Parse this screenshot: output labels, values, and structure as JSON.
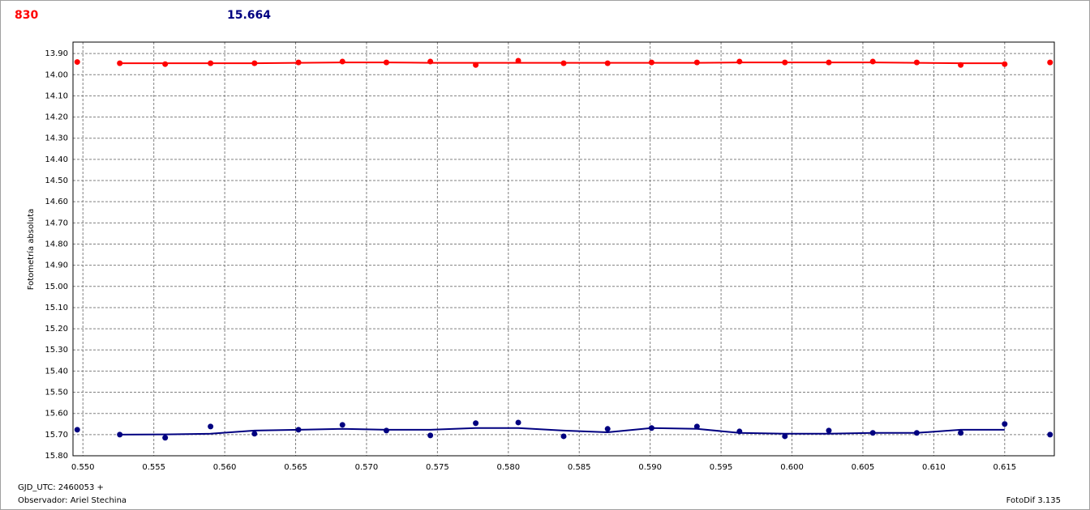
{
  "chart_data": {
    "type": "scatter",
    "header_left": "830",
    "header_right": "15.664",
    "y_label": "Fotometría absoluta",
    "footer_x": "GJD_UTC: 2460053 +",
    "footer_observer": "Observador: Ariel Stechina",
    "footer_software": "FotoDif 3.135",
    "x": [
      0.5496,
      0.5526,
      0.5558,
      0.559,
      0.5621,
      0.5652,
      0.5683,
      0.5714,
      0.5745,
      0.5777,
      0.5807,
      0.5839,
      0.587,
      0.5901,
      0.5933,
      0.5963,
      0.5995,
      0.6026,
      0.6057,
      0.6088,
      0.6119,
      0.615,
      0.6182
    ],
    "series": [
      {
        "color": "#ff0000",
        "values": [
          13.94,
          13.946,
          13.95,
          13.946,
          13.946,
          13.942,
          13.938,
          13.942,
          13.938,
          13.954,
          13.934,
          13.946,
          13.946,
          13.942,
          13.942,
          13.938,
          13.942,
          13.942,
          13.938,
          13.942,
          13.954,
          13.95,
          13.942
        ],
        "trend": [
          null,
          13.946,
          13.946,
          13.946,
          13.946,
          13.944,
          13.942,
          13.942,
          13.944,
          13.944,
          13.944,
          13.944,
          13.944,
          13.944,
          13.944,
          13.942,
          13.942,
          13.942,
          13.942,
          13.944,
          13.946,
          13.946,
          null
        ]
      },
      {
        "color": "#000080",
        "values": [
          15.677,
          15.7,
          15.715,
          15.662,
          15.696,
          15.677,
          15.654,
          15.681,
          15.704,
          15.646,
          15.643,
          15.708,
          15.673,
          15.669,
          15.662,
          15.685,
          15.708,
          15.681,
          15.692,
          15.692,
          15.692,
          15.65,
          15.7
        ],
        "trend": [
          null,
          15.7,
          15.699,
          15.696,
          15.681,
          15.677,
          15.673,
          15.677,
          15.677,
          15.669,
          15.669,
          15.681,
          15.689,
          15.669,
          15.673,
          15.692,
          15.696,
          15.696,
          15.692,
          15.692,
          15.677,
          15.677,
          null
        ]
      }
    ],
    "xlim": [
      0.5493,
      0.6185
    ],
    "xticks": [
      {
        "value": 0.55,
        "label": "0.550"
      },
      {
        "value": 0.555,
        "label": "0.555"
      },
      {
        "value": 0.56,
        "label": "0.560"
      },
      {
        "value": 0.565,
        "label": "0.565"
      },
      {
        "value": 0.57,
        "label": "0.570"
      },
      {
        "value": 0.575,
        "label": "0.575"
      },
      {
        "value": 0.58,
        "label": "0.580"
      },
      {
        "value": 0.585,
        "label": "0.585"
      },
      {
        "value": 0.59,
        "label": "0.590"
      },
      {
        "value": 0.595,
        "label": "0.595"
      },
      {
        "value": 0.6,
        "label": "0.600"
      },
      {
        "value": 0.605,
        "label": "0.605"
      },
      {
        "value": 0.61,
        "label": "0.610"
      },
      {
        "value": 0.615,
        "label": "0.615"
      }
    ],
    "ylim": [
      15.8,
      13.846
    ],
    "yticks": [
      {
        "value": 13.9,
        "label": "13.90"
      },
      {
        "value": 14.0,
        "label": "14.00"
      },
      {
        "value": 14.1,
        "label": "14.10"
      },
      {
        "value": 14.2,
        "label": "14.20"
      },
      {
        "value": 14.3,
        "label": "14.30"
      },
      {
        "value": 14.4,
        "label": "14.40"
      },
      {
        "value": 14.5,
        "label": "14.50"
      },
      {
        "value": 14.6,
        "label": "14.60"
      },
      {
        "value": 14.7,
        "label": "14.70"
      },
      {
        "value": 14.8,
        "label": "14.80"
      },
      {
        "value": 14.9,
        "label": "14.90"
      },
      {
        "value": 15.0,
        "label": "15.00"
      },
      {
        "value": 15.1,
        "label": "15.10"
      },
      {
        "value": 15.2,
        "label": "15.20"
      },
      {
        "value": 15.3,
        "label": "15.30"
      },
      {
        "value": 15.4,
        "label": "15.40"
      },
      {
        "value": 15.5,
        "label": "15.50"
      },
      {
        "value": 15.6,
        "label": "15.60"
      },
      {
        "value": 15.7,
        "label": "15.70"
      },
      {
        "value": 15.8,
        "label": "15.80"
      }
    ],
    "grid": true
  }
}
